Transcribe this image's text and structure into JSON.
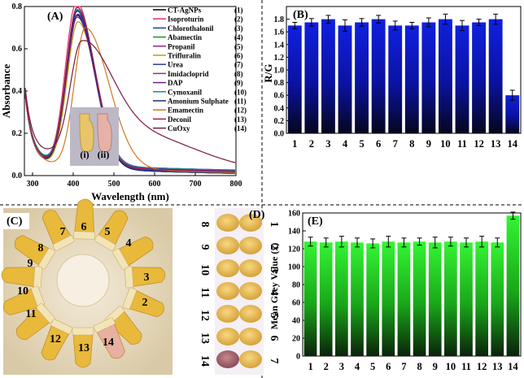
{
  "figure": {
    "panel_a": {
      "label": "(A)",
      "chart_data": {
        "type": "line",
        "xlabel": "Wavelength (nm)",
        "ylabel": "Absorbance",
        "xlim": [
          280,
          800
        ],
        "ylim": [
          0.0,
          0.8
        ],
        "xticks": [
          300,
          400,
          500,
          600,
          700,
          800
        ],
        "yticks": [
          0.0,
          0.2,
          0.4,
          0.6,
          0.8
        ],
        "legend": [
          {
            "name": "CT-AgNPs",
            "num": "(1)",
            "color": "#000000",
            "peak": 410,
            "peak_abs": 0.72
          },
          {
            "name": "Isoproturin",
            "num": "(2)",
            "color": "#e0306a",
            "peak": 408,
            "peak_abs": 0.78
          },
          {
            "name": "Chlorothalonil",
            "num": "(3)",
            "color": "#1a3fb0",
            "peak": 410,
            "peak_abs": 0.75
          },
          {
            "name": "Abamectin",
            "num": "(4)",
            "color": "#1f8f2a",
            "peak": 410,
            "peak_abs": 0.73
          },
          {
            "name": "Propanil",
            "num": "(5)",
            "color": "#8a2a8a",
            "peak": 412,
            "peak_abs": 0.71
          },
          {
            "name": "Trifluralin",
            "num": "(6)",
            "color": "#b8a010",
            "peak": 412,
            "peak_abs": 0.69
          },
          {
            "name": "Urea",
            "num": "(7)",
            "color": "#2a3aa0",
            "peak": 410,
            "peak_abs": 0.72
          },
          {
            "name": "Imidacloprid",
            "num": "(8)",
            "color": "#b0207a",
            "peak": 410,
            "peak_abs": 0.74
          },
          {
            "name": "DAP",
            "num": "(9)",
            "color": "#6a2090",
            "peak": 410,
            "peak_abs": 0.7
          },
          {
            "name": "Cymoxanil",
            "num": "(10)",
            "color": "#1a8a9a",
            "peak": 410,
            "peak_abs": 0.73
          },
          {
            "name": "Amonium Sulphate",
            "num": "(11)",
            "color": "#1a2a80",
            "peak": 410,
            "peak_abs": 0.74
          },
          {
            "name": "Emamectin",
            "num": "(12)",
            "color": "#d07a20",
            "peak": 430,
            "peak_abs": 0.66
          },
          {
            "name": "Deconil",
            "num": "(13)",
            "color": "#a02040",
            "peak": 410,
            "peak_abs": 0.75
          },
          {
            "name": "CuOxy",
            "num": "(14)",
            "color": "#7a1a40",
            "peak": 420,
            "peak_abs": 0.49
          }
        ],
        "inset_labels": [
          "(i)",
          "(ii)"
        ]
      }
    },
    "panel_b": {
      "label": "(B)",
      "chart_data": {
        "type": "bar",
        "ylabel": "R/G",
        "categories": [
          "1",
          "2",
          "3",
          "4",
          "5",
          "6",
          "7",
          "8",
          "9",
          "10",
          "11",
          "12",
          "13",
          "14"
        ],
        "values": [
          1.7,
          1.75,
          1.8,
          1.7,
          1.75,
          1.8,
          1.7,
          1.7,
          1.75,
          1.8,
          1.7,
          1.75,
          1.8,
          0.6
        ],
        "errors": [
          0.05,
          0.06,
          0.06,
          0.09,
          0.06,
          0.06,
          0.07,
          0.05,
          0.07,
          0.08,
          0.08,
          0.05,
          0.08,
          0.08
        ],
        "ylim": [
          0.0,
          2.0
        ],
        "yticks": [
          0.0,
          0.2,
          0.4,
          0.6,
          0.8,
          1.0,
          1.2,
          1.4,
          1.6,
          1.8
        ]
      }
    },
    "panel_c": {
      "label": "(C)",
      "tube_numbers": [
        "1",
        "2",
        "3",
        "4",
        "5",
        "6",
        "7",
        "8",
        "9",
        "10",
        "11",
        "12",
        "13",
        "14"
      ]
    },
    "panel_d": {
      "label": "(D)",
      "left_numbers": [
        "8",
        "9",
        "10",
        "11",
        "12",
        "13",
        "14"
      ],
      "right_numbers": [
        "1",
        "2",
        "3",
        "4",
        "5",
        "6",
        "7"
      ]
    },
    "panel_e": {
      "label": "(E)",
      "chart_data": {
        "type": "bar",
        "ylabel": "Mean Grey Value (x̄)",
        "categories": [
          "1",
          "2",
          "3",
          "4",
          "5",
          "6",
          "7",
          "8",
          "9",
          "10",
          "11",
          "12",
          "13",
          "14"
        ],
        "values": [
          128,
          127,
          128,
          127,
          126,
          128,
          127,
          128,
          127,
          128,
          127,
          128,
          127,
          157
        ],
        "errors": [
          5,
          5,
          6,
          5,
          5,
          6,
          5,
          4,
          6,
          5,
          5,
          6,
          5,
          4
        ],
        "ylim": [
          0,
          160
        ],
        "yticks": [
          0,
          20,
          40,
          60,
          80,
          100,
          120,
          140,
          160
        ]
      }
    },
    "colors": {
      "blue_bar_top": "#0a14c8",
      "blue_bar_bottom": "#05051e",
      "green_bar_top": "#2ef02e",
      "green_bar_bottom": "#0a2a0a"
    }
  }
}
